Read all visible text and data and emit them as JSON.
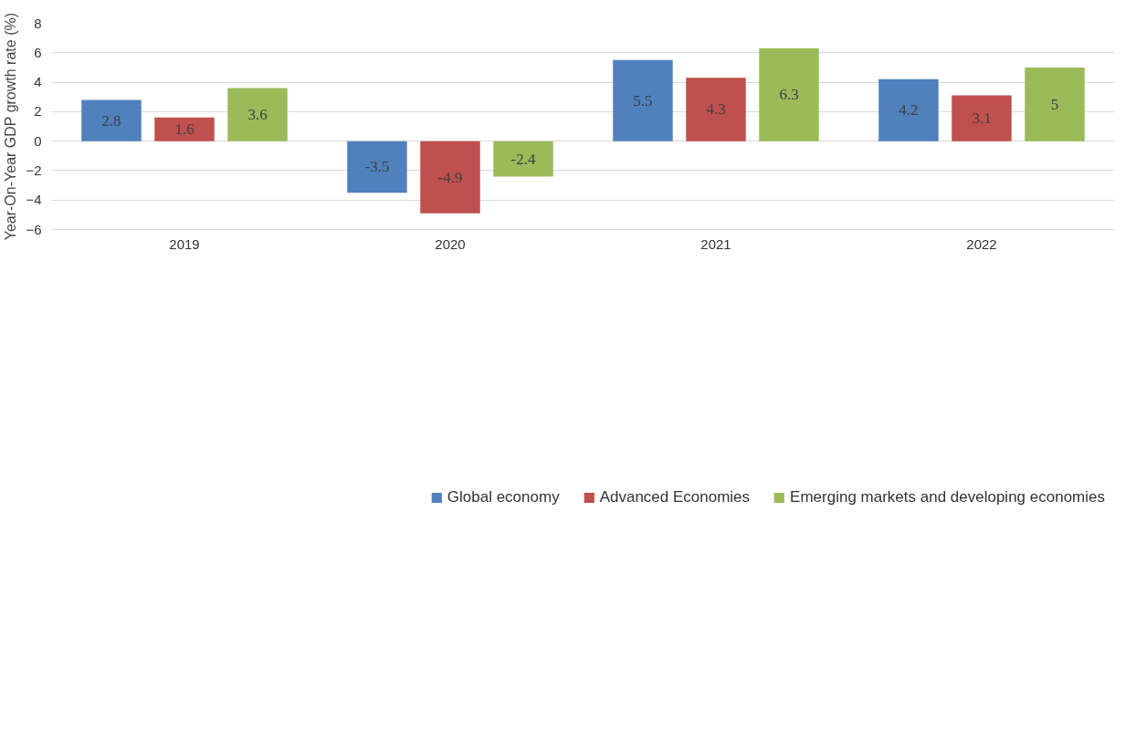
{
  "chart_data": {
    "type": "bar",
    "ylabel": "Year-On-Year GDP growth rate (%)",
    "categories": [
      "2019",
      "2020",
      "2021",
      "2022"
    ],
    "series": [
      {
        "name": "Global economy",
        "color": "#4f81bd",
        "values": [
          2.8,
          -3.5,
          5.5,
          4.2
        ]
      },
      {
        "name": "Advanced Economies",
        "color": "#c0504d",
        "values": [
          1.6,
          -4.9,
          4.3,
          3.1
        ]
      },
      {
        "name": "Emerging markets and developing economies",
        "color": "#9bbb59",
        "values": [
          3.6,
          -2.4,
          6.3,
          5
        ]
      }
    ],
    "ylim": [
      -6,
      8
    ],
    "yticks": [
      -6,
      -4,
      -2,
      0,
      2,
      4,
      6,
      8
    ],
    "grid": "y",
    "legend": "bottom",
    "data_labels": true
  }
}
